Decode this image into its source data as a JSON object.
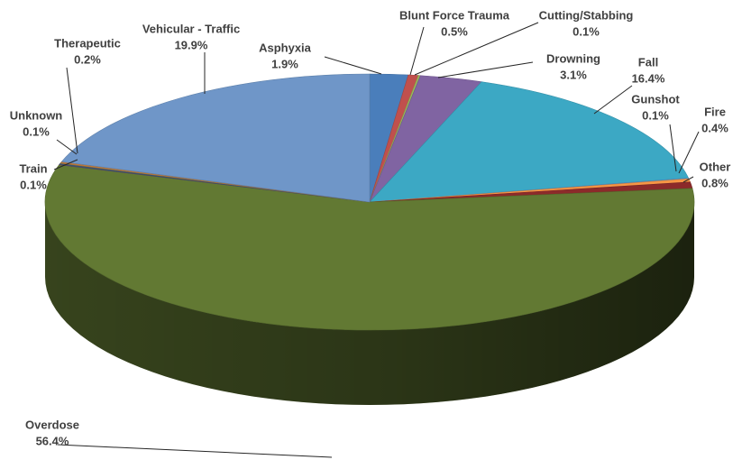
{
  "chart_data": {
    "type": "pie",
    "variant": "3d",
    "title": "",
    "legend": "none",
    "slices": [
      {
        "label": "Asphyxia",
        "value": 1.9,
        "value_text": "1.9%",
        "color": "#4A7EBB"
      },
      {
        "label": "Blunt Force Trauma",
        "value": 0.5,
        "value_text": "0.5%",
        "color": "#C0504D"
      },
      {
        "label": "Cutting/Stabbing",
        "value": 0.1,
        "value_text": "0.1%",
        "color": "#9BBB59"
      },
      {
        "label": "Drowning",
        "value": 3.1,
        "value_text": "3.1%",
        "color": "#8064A2"
      },
      {
        "label": "Fall",
        "value": 16.4,
        "value_text": "16.4%",
        "color": "#3CA8C4"
      },
      {
        "label": "Gunshot",
        "value": 0.1,
        "value_text": "0.1%",
        "color": "#5B9BD5"
      },
      {
        "label": "Fire",
        "value": 0.4,
        "value_text": "0.4%",
        "color": "#F79646"
      },
      {
        "label": "Other",
        "value": 0.8,
        "value_text": "0.8%",
        "color": "#8C2A2A"
      },
      {
        "label": "Overdose",
        "value": 56.4,
        "value_text": "56.4%",
        "color": "#627933"
      },
      {
        "label": "Train",
        "value": 0.1,
        "value_text": "0.1%",
        "color": "#5E4A7A"
      },
      {
        "label": "Unknown",
        "value": 0.1,
        "value_text": "0.1%",
        "color": "#2F6A80"
      },
      {
        "label": "Therapeutic",
        "value": 0.2,
        "value_text": "0.2%",
        "color": "#C07A3A"
      },
      {
        "label": "Vehicular - Traffic",
        "value": 19.9,
        "value_text": "19.9%",
        "color": "#6F96C8"
      }
    ]
  }
}
